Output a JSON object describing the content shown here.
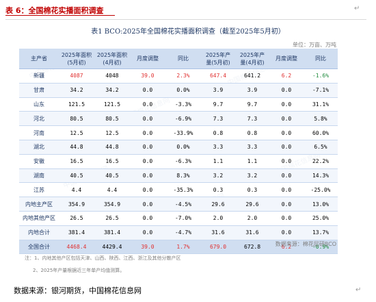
{
  "heading": "表 6：全国棉花实播面积调查",
  "caption": "表1   BCO:2025年全国棉花实播面积调查（截至2025年5月初）",
  "unit": "单位：万亩、万吨",
  "headers": [
    "主产省",
    "2025年面积(5月初)",
    "2025年面积(4月初)",
    "月度调整",
    "同比",
    "2025年产量(5月初)",
    "2025年产量(4月初)",
    "月度调整",
    "同比"
  ],
  "rows": [
    {
      "province": "新疆",
      "area_may": "4087",
      "area_apr": "4048",
      "area_adj": "39.0",
      "area_yoy": "2.3%",
      "prod_may": "647.4",
      "prod_apr": "641.2",
      "prod_adj": "6.2",
      "prod_yoy": "-1.6%"
    },
    {
      "province": "甘肃",
      "area_may": "34.2",
      "area_apr": "34.2",
      "area_adj": "0.0",
      "area_yoy": "0.0%",
      "prod_may": "3.9",
      "prod_apr": "3.9",
      "prod_adj": "0.0",
      "prod_yoy": "-7.1%"
    },
    {
      "province": "山东",
      "area_may": "121.5",
      "area_apr": "121.5",
      "area_adj": "0.0",
      "area_yoy": "-3.3%",
      "prod_may": "9.7",
      "prod_apr": "9.7",
      "prod_adj": "0.0",
      "prod_yoy": "31.1%"
    },
    {
      "province": "河北",
      "area_may": "80.5",
      "area_apr": "80.5",
      "area_adj": "0.0",
      "area_yoy": "-6.9%",
      "prod_may": "7.3",
      "prod_apr": "7.3",
      "prod_adj": "0.0",
      "prod_yoy": "5.8%"
    },
    {
      "province": "河南",
      "area_may": "12.5",
      "area_apr": "12.5",
      "area_adj": "0.0",
      "area_yoy": "-33.9%",
      "prod_may": "0.8",
      "prod_apr": "0.8",
      "prod_adj": "0.0",
      "prod_yoy": "60.0%"
    },
    {
      "province": "湖北",
      "area_may": "44.8",
      "area_apr": "44.8",
      "area_adj": "0.0",
      "area_yoy": "0.0%",
      "prod_may": "3.3",
      "prod_apr": "3.3",
      "prod_adj": "0.0",
      "prod_yoy": "6.5%"
    },
    {
      "province": "安徽",
      "area_may": "16.5",
      "area_apr": "16.5",
      "area_adj": "0.0",
      "area_yoy": "-6.3%",
      "prod_may": "1.1",
      "prod_apr": "1.1",
      "prod_adj": "0.0",
      "prod_yoy": "22.2%"
    },
    {
      "province": "湖南",
      "area_may": "40.5",
      "area_apr": "40.5",
      "area_adj": "0.0",
      "area_yoy": "8.3%",
      "prod_may": "3.2",
      "prod_apr": "3.2",
      "prod_adj": "0.0",
      "prod_yoy": "14.3%"
    },
    {
      "province": "江苏",
      "area_may": "4.4",
      "area_apr": "4.4",
      "area_adj": "0.0",
      "area_yoy": "-35.3%",
      "prod_may": "0.3",
      "prod_apr": "0.3",
      "prod_adj": "0.0",
      "prod_yoy": "-25.0%"
    },
    {
      "province": "内地主产区",
      "area_may": "354.9",
      "area_apr": "354.9",
      "area_adj": "0.0",
      "area_yoy": "-4.5%",
      "prod_may": "29.6",
      "prod_apr": "29.6",
      "prod_adj": "0.0",
      "prod_yoy": "13.0%"
    },
    {
      "province": "内地其他产区",
      "area_may": "26.5",
      "area_apr": "26.5",
      "area_adj": "0.0",
      "area_yoy": "-7.0%",
      "prod_may": "2.0",
      "prod_apr": "2.0",
      "prod_adj": "0.0",
      "prod_yoy": "25.0%"
    },
    {
      "province": "内地合计",
      "area_may": "381.4",
      "area_apr": "381.4",
      "area_adj": "0.0",
      "area_yoy": "-4.7%",
      "prod_may": "31.6",
      "prod_apr": "31.6",
      "prod_adj": "0.0",
      "prod_yoy": "13.7%"
    },
    {
      "province": "全国合计",
      "area_may": "4468.4",
      "area_apr": "4429.4",
      "area_adj": "39.0",
      "area_yoy": "1.7%",
      "prod_may": "679.0",
      "prod_apr": "672.8",
      "prod_adj": "6.2",
      "prod_yoy": "-0.9%"
    }
  ],
  "highlight": {
    "red_rows": [
      0,
      12
    ],
    "green_rows": [
      0,
      12
    ],
    "colors": {
      "red": "#e03030",
      "green": "#1e8a3c",
      "header_bg": "#d0def1",
      "heading": "#c00000"
    }
  },
  "source_inner": "数据来源：棉花层研BCO",
  "notes": [
    "注：1、内地其他产区包括天津、山西、陕西、江西、浙江及其他分散产区",
    "2、2025年产量根据近三年单产均值测算。"
  ],
  "footer": "数据来源：银河期货，中国棉花信息网",
  "paragraph_mark": "↵"
}
